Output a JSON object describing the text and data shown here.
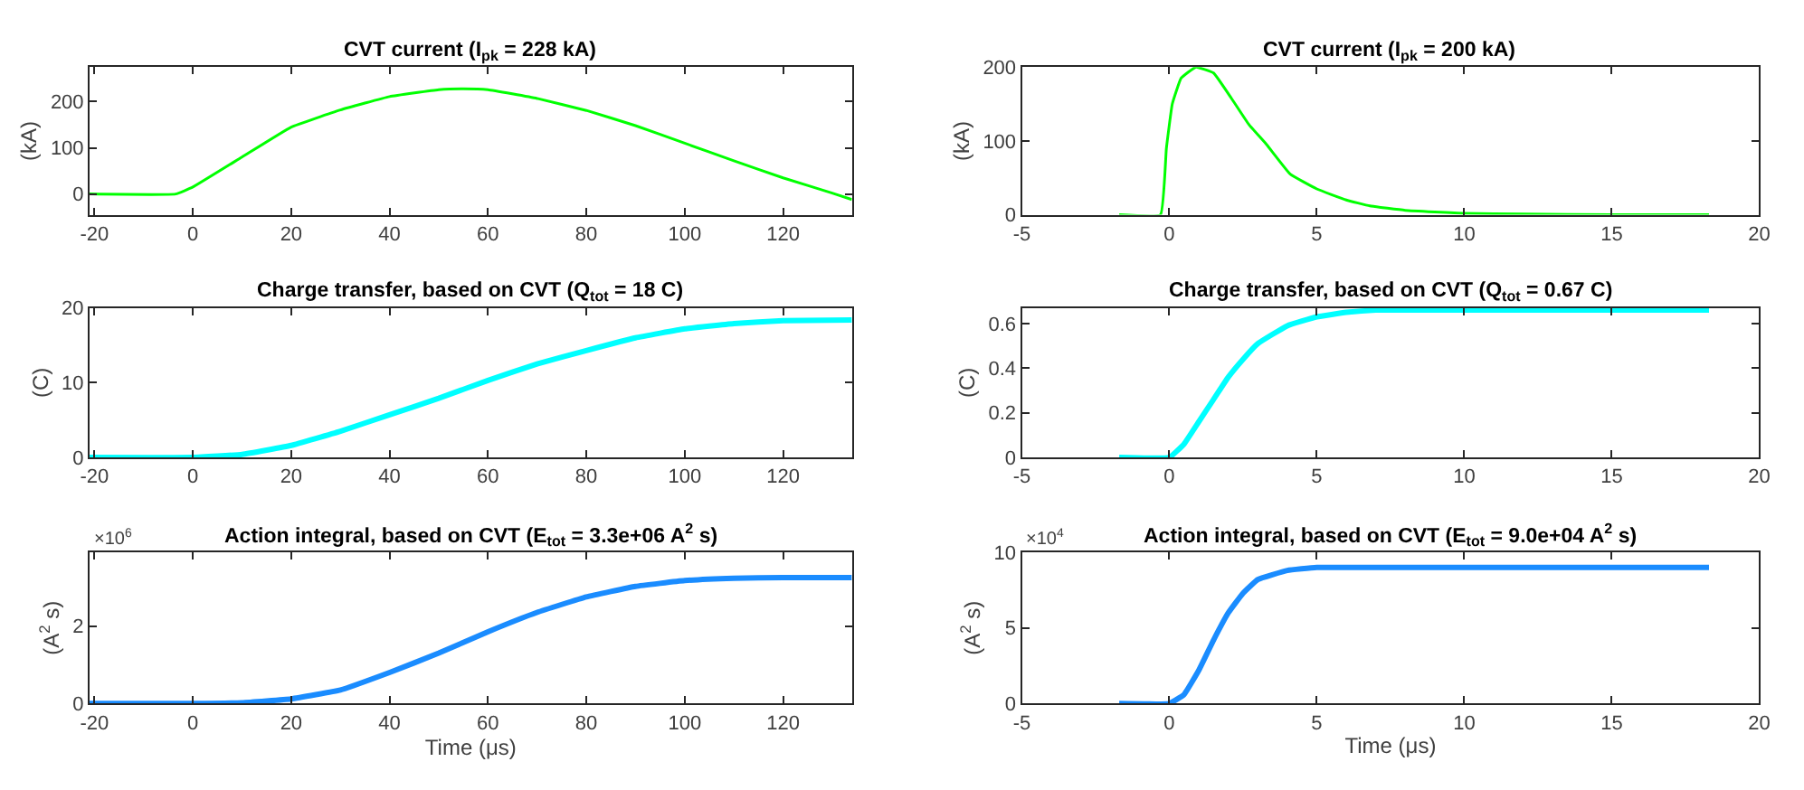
{
  "chart_data": [
    {
      "type": "line",
      "title": "CVT current (I$_{pk}$ = 228 kA)",
      "ylabel": "(kA)",
      "xlim": [
        -21,
        134
      ],
      "ylim": [
        -45,
        275
      ],
      "xticks": [
        -20,
        0,
        20,
        40,
        60,
        80,
        100,
        120
      ],
      "yticks": [
        0,
        100,
        200
      ],
      "line_style": "solid",
      "marker": "none",
      "x": [
        -21,
        -3.5,
        0,
        10,
        20,
        30,
        40,
        50,
        55,
        60,
        70,
        80,
        90,
        100,
        110,
        120,
        130,
        134
      ],
      "series": [
        {
          "color": "#00ff00",
          "values": [
            0,
            0,
            15,
            80,
            145,
            182,
            211,
            226,
            228,
            226,
            207,
            181,
            148,
            110,
            72,
            35,
            2,
            -12
          ]
        }
      ]
    },
    {
      "type": "line",
      "title": "CVT current (I$_{pk}$ = 200 kA)",
      "ylabel": "(kA)",
      "xlim": [
        -5,
        20
      ],
      "ylim": [
        0,
        200
      ],
      "xticks": [
        -5,
        0,
        5,
        10,
        15,
        20
      ],
      "yticks": [
        0,
        100,
        200
      ],
      "line_style": "solid",
      "marker": "none",
      "x": [
        -1.7,
        -0.3,
        -0.1,
        0.1,
        0.4,
        0.9,
        1.5,
        2.1,
        2.7,
        3.3,
        4.1,
        5,
        6,
        6.8,
        8,
        10,
        12,
        15,
        18.3
      ],
      "series": [
        {
          "color": "#00ff00",
          "values": [
            0,
            0,
            90,
            150,
            185,
            200,
            192,
            158,
            122,
            95,
            55,
            35,
            20,
            12,
            6,
            2,
            1,
            0,
            0
          ]
        }
      ]
    },
    {
      "type": "line",
      "title": "Charge transfer, based on CVT (Q$_{tot}$ = 18 C)",
      "ylabel": "(C)",
      "xlim": [
        -21,
        134
      ],
      "ylim": [
        0,
        20
      ],
      "xticks": [
        -20,
        0,
        20,
        40,
        60,
        80,
        100,
        120
      ],
      "yticks": [
        0,
        10,
        20
      ],
      "line_style": "solid",
      "marker": "none",
      "x": [
        -21,
        0,
        10,
        20,
        30,
        40,
        50,
        60,
        70,
        80,
        90,
        100,
        110,
        120,
        134
      ],
      "series": [
        {
          "color": "#00ffff",
          "values": [
            0,
            0,
            0.4,
            1.6,
            3.5,
            5.7,
            7.9,
            10.3,
            12.5,
            14.3,
            16,
            17.2,
            17.9,
            18.3,
            18.4
          ]
        }
      ]
    },
    {
      "type": "line",
      "title": "Charge transfer, based on CVT (Q$_{tot}$ = 0.67 C)",
      "ylabel": "(C)",
      "xlim": [
        -5,
        20
      ],
      "ylim": [
        0,
        0.67
      ],
      "xticks": [
        -5,
        0,
        5,
        10,
        15,
        20
      ],
      "yticks": [
        0,
        0.2,
        0.4,
        0.6
      ],
      "line_style": "solid",
      "marker": "none",
      "x": [
        -1.7,
        0,
        0.5,
        1,
        1.5,
        2,
        2.5,
        3,
        4,
        5,
        6,
        7,
        8,
        18.3
      ],
      "series": [
        {
          "color": "#00ffff",
          "values": [
            0,
            0,
            0.06,
            0.16,
            0.26,
            0.36,
            0.44,
            0.51,
            0.59,
            0.63,
            0.65,
            0.66,
            0.66,
            0.66
          ]
        }
      ]
    },
    {
      "type": "line",
      "title": "Action integral, based on CVT (E$_{tot}$ = 3.3e+06 A$^{2}$ s)",
      "ylabel": "(A$^{2}$ s)",
      "xlabel": "Time (μs)",
      "annotations": [
        "×10$^{6}$"
      ],
      "xlim": [
        -21,
        134
      ],
      "ylim": [
        0,
        3.9
      ],
      "xticks": [
        -20,
        0,
        20,
        40,
        60,
        80,
        100,
        120
      ],
      "yticks": [
        0,
        2
      ],
      "line_style": "solid",
      "marker": "none",
      "x": [
        -21,
        0,
        10,
        20,
        30,
        40,
        50,
        60,
        70,
        80,
        90,
        100,
        110,
        120,
        134
      ],
      "series": [
        {
          "color": "#1a8cff",
          "values": [
            0,
            0,
            0.02,
            0.12,
            0.35,
            0.8,
            1.3,
            1.85,
            2.35,
            2.75,
            3.02,
            3.17,
            3.23,
            3.25,
            3.25
          ]
        }
      ]
    },
    {
      "type": "line",
      "title": "Action integral, based on CVT (E$_{tot}$ = 9.0e+04 A$^{2}$ s)",
      "ylabel": "(A$^{2}$ s)",
      "xlabel": "Time (μs)",
      "annotations": [
        "×10$^{4}$"
      ],
      "xlim": [
        -5,
        20
      ],
      "ylim": [
        0,
        10
      ],
      "xticks": [
        -5,
        0,
        5,
        10,
        15,
        20
      ],
      "yticks": [
        0,
        5,
        10
      ],
      "line_style": "solid",
      "marker": "none",
      "x": [
        -1.7,
        0,
        0.5,
        1,
        1.5,
        2,
        2.5,
        3,
        4,
        5,
        18.3
      ],
      "series": [
        {
          "color": "#1a8cff",
          "values": [
            0,
            0,
            0.6,
            2.2,
            4.2,
            6.0,
            7.3,
            8.2,
            8.8,
            9.0,
            9.0
          ]
        }
      ]
    }
  ]
}
